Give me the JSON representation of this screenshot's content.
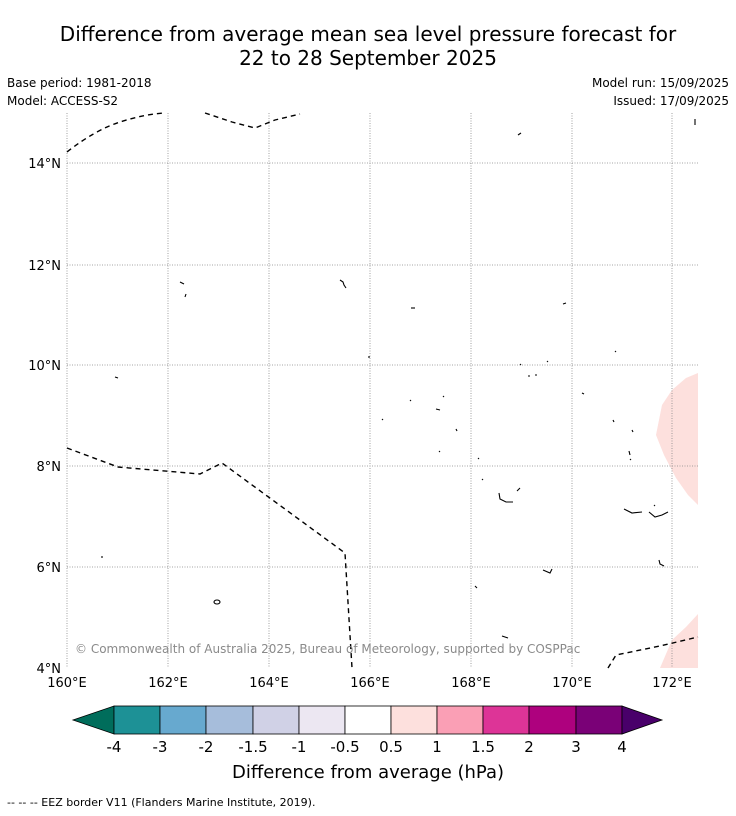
{
  "title": {
    "line1": "Difference from average mean sea level pressure forecast for",
    "line2": "22 to 28 September 2025"
  },
  "meta": {
    "base_period": "Base period: 1981-2018",
    "model": "Model: ACCESS-S2",
    "model_run": "Model run: 15/09/2025",
    "issued": "Issued: 17/09/2025"
  },
  "map": {
    "lat_labels": [
      "4°N",
      "6°N",
      "8°N",
      "10°N",
      "12°N",
      "14°N"
    ],
    "lon_labels": [
      "160°E",
      "162°E",
      "164°E",
      "166°E",
      "168°E",
      "170°E",
      "172°E"
    ],
    "copyright": "© Commonwealth of Australia 2025, Bureau of Meteorology, supported by COSPPac",
    "anomaly_fill_color": "#fde0dd"
  },
  "colorbar": {
    "title": "Difference from average (hPa)",
    "tick_labels": [
      "-4",
      "-3",
      "-2",
      "-1.5",
      "-1",
      "-0.5",
      "0.5",
      "1",
      "1.5",
      "2",
      "3",
      "4"
    ],
    "colors": [
      "#006d5b",
      "#1d9196",
      "#67a9cf",
      "#a6bddb",
      "#d0d1e6",
      "#ece7f2",
      "#ffffff",
      "#fde0dd",
      "#fa9fb5",
      "#dd3497",
      "#ae017e",
      "#7a0177",
      "#49006a"
    ]
  },
  "legend_note": "--  --  -- EEZ border V11 (Flanders Marine Institute, 2019)."
}
